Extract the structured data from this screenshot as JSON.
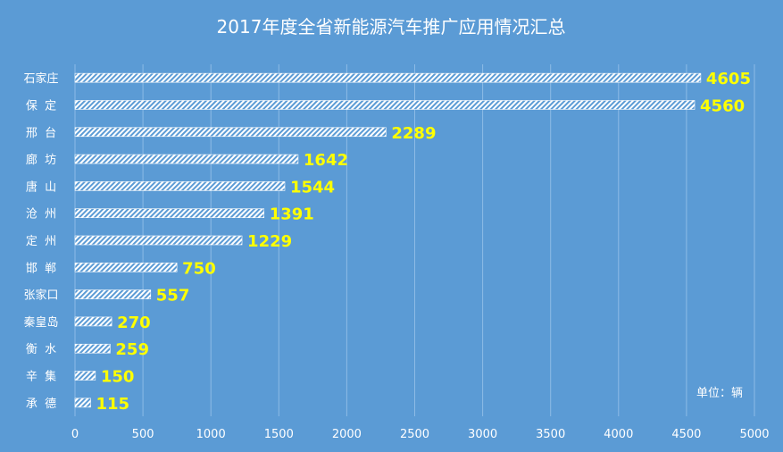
{
  "chart_data": {
    "type": "bar",
    "orientation": "horizontal",
    "title": "2017年度全省新能源汽车推广应用情况汇总",
    "unit_note": "单位：辆",
    "categories": [
      "石家庄",
      "保  定",
      "邢  台",
      "廊  坊",
      "唐  山",
      "沧  州",
      "定  州",
      "邯  郸",
      "张家口",
      "秦皇岛",
      "衡  水",
      "辛  集",
      "承  德"
    ],
    "values": [
      4605,
      4560,
      2289,
      1642,
      1544,
      1391,
      1229,
      750,
      557,
      270,
      259,
      150,
      115
    ],
    "xlim": [
      0,
      5000
    ],
    "xticks": [
      0,
      500,
      1000,
      1500,
      2000,
      2500,
      3000,
      3500,
      4000,
      4500,
      5000
    ],
    "grid": true,
    "legend": "none",
    "colors": {
      "background": "#5b9bd5",
      "bar_stripe": "#ffffff",
      "value_label": "#ffff00",
      "text": "#ffffff",
      "grid": "#8dbbe6"
    }
  }
}
